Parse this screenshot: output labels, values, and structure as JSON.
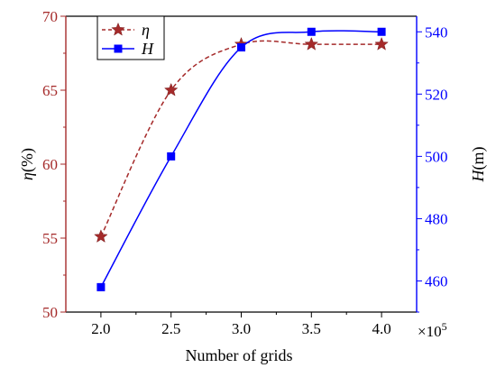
{
  "chart_data": {
    "type": "line",
    "xlabel": "Number of grids",
    "x_multiplier": "×10",
    "x_multiplier_exp": "5",
    "x": [
      2.0,
      2.5,
      3.0,
      3.5,
      4.0
    ],
    "xticks": [
      "2.0",
      "2.5",
      "3.0",
      "3.5",
      "4.0"
    ],
    "xlim": [
      1.75,
      4.25
    ],
    "ylabel_left": {
      "symbol": "η",
      "unit": "(%)"
    },
    "ylabel_right": {
      "symbol": "H",
      "unit": "(m)"
    },
    "ylim_left": [
      50,
      70
    ],
    "ylim_right": [
      450,
      545
    ],
    "yticks_left": [
      "50",
      "55",
      "60",
      "65",
      "70"
    ],
    "yticks_right": [
      "460",
      "480",
      "500",
      "520",
      "540"
    ],
    "legend_position": "top-left",
    "grid": false,
    "series": [
      {
        "name": "η",
        "axis": "left",
        "values": [
          55.1,
          65.0,
          68.1,
          68.1,
          68.1
        ],
        "color": "#a52a2a",
        "line_style": "dashed",
        "marker": "star"
      },
      {
        "name": "H",
        "axis": "right",
        "values": [
          458,
          500,
          535,
          540,
          540
        ],
        "color": "#0000ff",
        "line_style": "solid",
        "marker": "square"
      }
    ],
    "colors": {
      "left_axis": "#a52a2a",
      "right_axis": "#0000ff",
      "frame": "#000000"
    }
  }
}
